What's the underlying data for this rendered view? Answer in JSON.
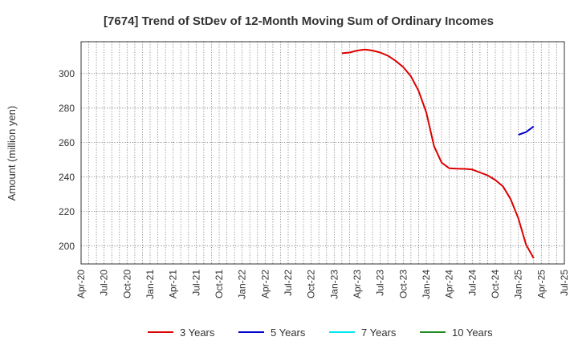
{
  "chart_data": {
    "type": "line",
    "title": "[7674]  Trend of StDev of 12-Month Moving Sum of Ordinary Incomes",
    "xlabel": "",
    "ylabel": "Amount (million yen)",
    "x_tick_labels": [
      "Apr-20",
      "Jul-20",
      "Oct-20",
      "Jan-21",
      "Apr-21",
      "Jul-21",
      "Oct-21",
      "Jan-22",
      "Apr-22",
      "Jul-22",
      "Oct-22",
      "Jan-23",
      "Apr-23",
      "Jul-23",
      "Oct-23",
      "Jan-24",
      "Apr-24",
      "Jul-24",
      "Oct-24",
      "Jan-25",
      "Apr-25",
      "Jul-25"
    ],
    "y_ticks": [
      200,
      220,
      240,
      260,
      280,
      300
    ],
    "ylim": [
      189.5,
      318.5
    ],
    "grid": true,
    "legend_position": "bottom",
    "series": [
      {
        "name": "3 Years",
        "color": "#dd0000",
        "points": [
          [
            "Feb-23",
            311.8
          ],
          [
            "Mar-23",
            312.2
          ],
          [
            "Apr-23",
            313.4
          ],
          [
            "May-23",
            314.0
          ],
          [
            "Jun-23",
            313.4
          ],
          [
            "Jul-23",
            312.2
          ],
          [
            "Aug-23",
            310.4
          ],
          [
            "Sep-23",
            307.4
          ],
          [
            "Oct-23",
            303.8
          ],
          [
            "Nov-23",
            298.4
          ],
          [
            "Dec-23",
            290.0
          ],
          [
            "Jan-24",
            277.5
          ],
          [
            "Feb-24",
            258.0
          ],
          [
            "Mar-24",
            248.3
          ],
          [
            "Apr-24",
            245.0
          ],
          [
            "May-24",
            244.8
          ],
          [
            "Jun-24",
            244.7
          ],
          [
            "Jul-24",
            244.3
          ],
          [
            "Aug-24",
            242.6
          ],
          [
            "Sep-24",
            240.9
          ],
          [
            "Oct-24",
            238.2
          ],
          [
            "Nov-24",
            234.5
          ],
          [
            "Dec-24",
            227.1
          ],
          [
            "Jan-25",
            216.0
          ],
          [
            "Feb-25",
            200.8
          ],
          [
            "Mar-25",
            192.8
          ]
        ]
      },
      {
        "name": "5 Years",
        "color": "#0000cc",
        "points": [
          [
            "Jan-25",
            264.5
          ],
          [
            "Feb-25",
            266.0
          ],
          [
            "Mar-25",
            269.3
          ]
        ]
      },
      {
        "name": "7 Years",
        "color": "#00e5ee",
        "points": []
      },
      {
        "name": "10 Years",
        "color": "#228b22",
        "points": []
      }
    ]
  }
}
